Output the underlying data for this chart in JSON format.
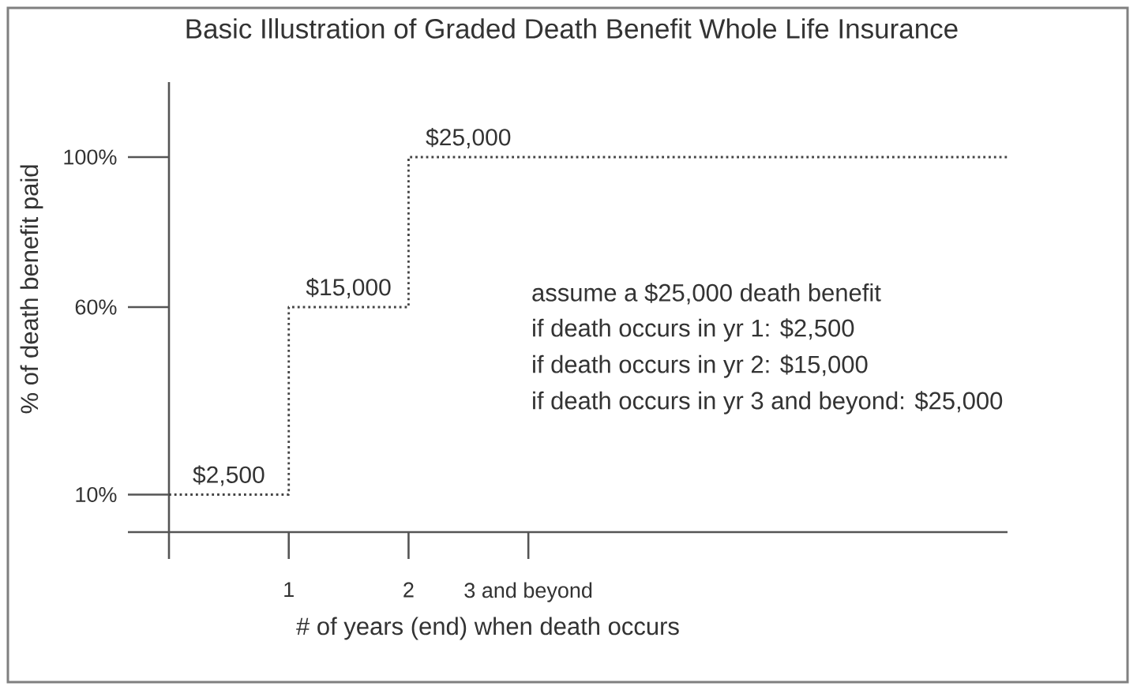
{
  "chart_data": {
    "type": "step",
    "title": "Basic Illustration of Graded Death Benefit Whole Life Insurance",
    "xlabel": "# of years (end) when death occurs",
    "ylabel": "% of death benefit paid",
    "x": [
      0,
      1,
      2,
      7
    ],
    "values": [
      10,
      60,
      100,
      100
    ],
    "color": "#444444",
    "line_style": "dotted",
    "marker": "none",
    "grid": false,
    "xlim": [
      0,
      7
    ],
    "ylim": [
      0,
      120
    ],
    "xticks": [
      {
        "value": 0,
        "label": null
      },
      1,
      2,
      {
        "value": 3,
        "label": "3 and beyond"
      }
    ],
    "yticks": [
      {
        "value": 0,
        "label": null
      },
      {
        "value": 10,
        "label": "10%"
      },
      {
        "value": 60,
        "label": "60%"
      },
      {
        "value": 100,
        "label": "100%"
      }
    ],
    "annotations": [
      {
        "text": "$2,500",
        "x": 0.5,
        "y": 10
      },
      {
        "text": "$15,000",
        "x": 1.5,
        "y": 60
      },
      {
        "text": "$25,000",
        "x": 2.5,
        "y": 100
      },
      "assume a $25,000 death benefit",
      "if death occurs in yr 1: $2,500",
      "if death occurs in yr 2: $15,000",
      "if death occurs in yr 3 and beyond: $25,000"
    ]
  }
}
